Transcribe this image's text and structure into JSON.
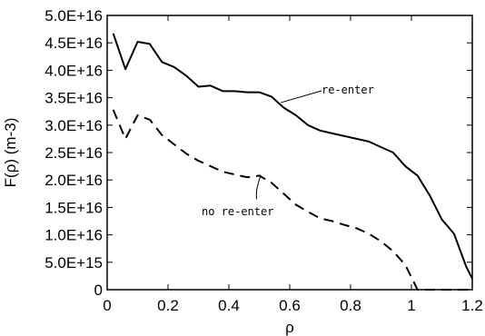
{
  "chart_data": {
    "type": "line",
    "xlabel": "ρ",
    "ylabel": "F(ρ)  (m-3)",
    "xlim": [
      0,
      1.2
    ],
    "ylim": [
      0,
      5e+16
    ],
    "grid": false,
    "x_ticks": [
      0,
      0.2,
      0.4,
      0.6,
      0.8,
      1,
      1.2
    ],
    "x_tick_labels": [
      "0",
      "0.2",
      "0.4",
      "0.6",
      "0.8",
      "1",
      "1.2"
    ],
    "y_ticks": [
      0,
      5000000000000000.0,
      1e+16,
      1.5e+16,
      2e+16,
      2.5e+16,
      3e+16,
      3.5e+16,
      4e+16,
      4.5e+16,
      5e+16
    ],
    "y_tick_labels": [
      "0",
      "5.0E+15",
      "1.0E+16",
      "1.5E+16",
      "2.0E+16",
      "2.5E+16",
      "3.0E+16",
      "3.5E+16",
      "4.0E+16",
      "4.5E+16",
      "5.0E+16"
    ],
    "series": [
      {
        "name": "re-enter",
        "style": "solid",
        "color": "#000000",
        "x": [
          0.02,
          0.06,
          0.1,
          0.14,
          0.18,
          0.22,
          0.26,
          0.3,
          0.34,
          0.38,
          0.42,
          0.46,
          0.5,
          0.54,
          0.58,
          0.62,
          0.66,
          0.7,
          0.74,
          0.78,
          0.82,
          0.86,
          0.9,
          0.94,
          0.98,
          1.02,
          1.06,
          1.1,
          1.14,
          1.18,
          1.2
        ],
        "y": [
          4.67e+16,
          4.02e+16,
          4.52e+16,
          4.48e+16,
          4.15e+16,
          4.06e+16,
          3.9e+16,
          3.7e+16,
          3.72e+16,
          3.62e+16,
          3.62e+16,
          3.6e+16,
          3.6e+16,
          3.52e+16,
          3.32e+16,
          3.18e+16,
          3e+16,
          2.9e+16,
          2.85e+16,
          2.8e+16,
          2.75e+16,
          2.7e+16,
          2.6e+16,
          2.5e+16,
          2.25e+16,
          2.08e+16,
          1.72e+16,
          1.28e+16,
          1.02e+16,
          4200000000000000.0,
          2000000000000000.0
        ]
      },
      {
        "name": "no re-enter",
        "style": "dashed",
        "color": "#000000",
        "x": [
          0.02,
          0.06,
          0.1,
          0.14,
          0.18,
          0.22,
          0.26,
          0.3,
          0.34,
          0.38,
          0.42,
          0.46,
          0.5,
          0.54,
          0.58,
          0.62,
          0.66,
          0.7,
          0.74,
          0.78,
          0.82,
          0.86,
          0.9,
          0.94,
          0.98,
          1.02,
          1.06,
          1.1,
          1.14,
          1.18,
          1.2
        ],
        "y": [
          3.28e+16,
          2.75e+16,
          3.18e+16,
          3.1e+16,
          2.82e+16,
          2.65e+16,
          2.48e+16,
          2.35e+16,
          2.25e+16,
          2.15e+16,
          2.1e+16,
          2.05e+16,
          2.08e+16,
          1.95e+16,
          1.75e+16,
          1.55e+16,
          1.42e+16,
          1.3e+16,
          1.25e+16,
          1.18e+16,
          1.12e+16,
          1.02e+16,
          8800000000000000.0,
          7000000000000000.0,
          4500000000000000.0,
          0,
          0,
          0,
          0,
          0,
          0
        ]
      }
    ],
    "annotations": [
      {
        "text": "re-enter",
        "series": 0,
        "at_x": 0.565
      },
      {
        "text": "no re-enter",
        "series": 1,
        "at_x": 0.5
      }
    ]
  }
}
